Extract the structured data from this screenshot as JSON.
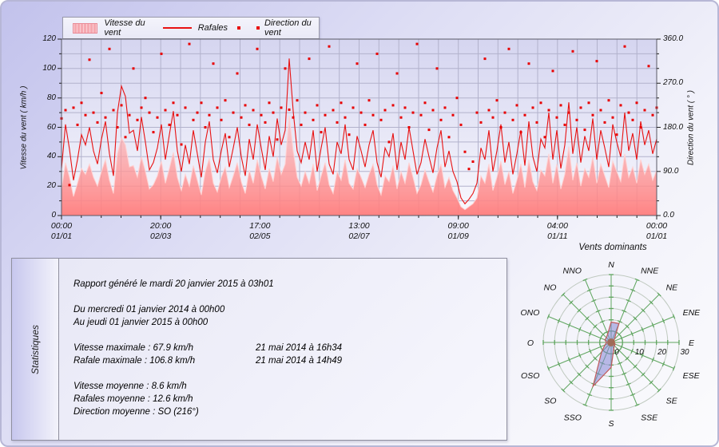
{
  "legend": {
    "items": [
      {
        "label": "Vitesse du vent",
        "sample": "area",
        "color": "#f5a8b0"
      },
      {
        "label": "Rafales",
        "sample": "line",
        "color": "#e81212"
      },
      {
        "label": "Direction du vent",
        "sample": "dots",
        "color": "#e80000"
      }
    ]
  },
  "chart_data": {
    "type": "mixed",
    "title": "",
    "ylabel_left": "Vitesse du vent ( km/h )",
    "ylabel_right": "Direction du vent ( ° )",
    "ylim_left": [
      0,
      120
    ],
    "ylim_right": [
      0,
      360
    ],
    "yticks_left": [
      0,
      20,
      40,
      60,
      80,
      100,
      120
    ],
    "yticks_right": [
      "0.0",
      "90.0",
      "180.0",
      "270.0",
      "360.0"
    ],
    "x_ticks": [
      {
        "time": "00:00",
        "date": "01/01"
      },
      {
        "time": "20:00",
        "date": "02/03"
      },
      {
        "time": "17:00",
        "date": "02/05"
      },
      {
        "time": "13:00",
        "date": "02/07"
      },
      {
        "time": "09:00",
        "date": "01/09"
      },
      {
        "time": "04:00",
        "date": "01/11"
      },
      {
        "time": "00:00",
        "date": "01/01"
      }
    ],
    "grid": {
      "x_divisions": 30,
      "y_divisions": 12
    },
    "colors": {
      "plot_bg_top": "#d5d5f0",
      "plot_bg_bottom": "#f8f8fd",
      "grid": "#b2b2cc",
      "frame": "#5a5a66",
      "area_fill_top": "#ffb4b4",
      "area_fill_bottom": "#ff7d7d",
      "area_edge": "#ffd2d2",
      "line": "#e81212",
      "dots": "#e80000"
    },
    "series": [
      {
        "name": "Vitesse du vent",
        "type": "area",
        "axis": "left",
        "values": [
          18,
          36,
          26,
          13,
          22,
          32,
          28,
          35,
          26,
          20,
          30,
          38,
          24,
          15,
          42,
          53,
          48,
          33,
          34,
          26,
          40,
          30,
          18,
          21,
          27,
          37,
          22,
          32,
          43,
          26,
          17,
          28,
          20,
          34,
          24,
          14,
          30,
          39,
          22,
          16,
          26,
          33,
          19,
          27,
          36,
          23,
          15,
          31,
          22,
          38,
          27,
          18,
          32,
          23,
          40,
          28,
          35,
          67.9,
          44,
          26,
          20,
          30,
          22,
          35,
          17,
          27,
          36,
          21,
          15,
          30,
          24,
          38,
          22,
          18,
          32,
          26,
          19,
          28,
          35,
          21,
          14,
          27,
          23,
          34,
          18,
          30,
          22,
          36,
          26,
          15,
          21,
          31,
          23,
          16,
          27,
          35,
          19,
          26,
          17,
          12,
          6,
          4,
          6,
          8,
          12,
          27,
          22,
          35,
          17,
          26,
          37,
          21,
          30,
          15,
          24,
          35,
          19,
          38,
          23,
          17,
          31,
          27,
          42,
          22,
          35,
          18,
          28,
          47,
          24,
          36,
          20,
          32,
          26,
          40,
          22,
          35,
          27,
          19,
          37,
          30,
          23,
          42,
          26,
          33,
          22,
          38,
          28,
          35,
          24,
          31
        ]
      },
      {
        "name": "Rafales",
        "type": "line",
        "axis": "left",
        "values": [
          32,
          62,
          45,
          24,
          38,
          55,
          48,
          60,
          44,
          35,
          52,
          64,
          42,
          27,
          70,
          88,
          81,
          56,
          58,
          44,
          67,
          50,
          31,
          36,
          46,
          62,
          38,
          55,
          71,
          44,
          30,
          48,
          35,
          58,
          42,
          26,
          50,
          64,
          38,
          29,
          44,
          56,
          33,
          46,
          60,
          40,
          27,
          52,
          38,
          62,
          46,
          31,
          54,
          40,
          66,
          48,
          58,
          106.8,
          71,
          44,
          36,
          50,
          38,
          58,
          30,
          46,
          60,
          35,
          28,
          50,
          42,
          62,
          38,
          31,
          54,
          44,
          33,
          48,
          58,
          36,
          26,
          46,
          40,
          56,
          31,
          50,
          38,
          60,
          44,
          28,
          36,
          52,
          40,
          29,
          46,
          58,
          33,
          44,
          30,
          23,
          12,
          8,
          11,
          15,
          22,
          46,
          38,
          58,
          30,
          44,
          62,
          36,
          50,
          28,
          42,
          58,
          34,
          64,
          40,
          30,
          52,
          46,
          70,
          38,
          58,
          32,
          48,
          77,
          42,
          60,
          36,
          54,
          44,
          66,
          38,
          58,
          46,
          33,
          62,
          50,
          40,
          70,
          44,
          56,
          38,
          64,
          48,
          58,
          42,
          52
        ]
      },
      {
        "name": "Direction du vent",
        "type": "scatter",
        "axis": "right",
        "values": [
          198,
          215,
          62,
          220,
          185,
          230,
          205,
          318,
          210,
          190,
          250,
          200,
          340,
          215,
          180,
          225,
          160,
          205,
          300,
          195,
          220,
          240,
          210,
          170,
          200,
          330,
          215,
          185,
          230,
          205,
          145,
          220,
          350,
          195,
          210,
          230,
          180,
          205,
          310,
          220,
          195,
          235,
          160,
          210,
          290,
          200,
          225,
          185,
          215,
          340,
          205,
          190,
          230,
          210,
          155,
          220,
          300,
          216,
          200,
          235,
          185,
          210,
          320,
          195,
          225,
          170,
          205,
          345,
          215,
          190,
          230,
          200,
          165,
          220,
          310,
          210,
          185,
          235,
          205,
          330,
          195,
          215,
          150,
          225,
          290,
          200,
          220,
          180,
          210,
          350,
          205,
          230,
          175,
          215,
          300,
          195,
          220,
          160,
          205,
          240,
          185,
          130,
          95,
          110,
          210,
          190,
          320,
          215,
          200,
          235,
          180,
          210,
          340,
          195,
          225,
          170,
          205,
          310,
          220,
          190,
          230,
          160,
          215,
          295,
          200,
          225,
          185,
          210,
          335,
          195,
          220,
          175,
          230,
          205,
          315,
          215,
          190,
          235,
          200,
          165,
          225,
          345,
          210,
          195,
          230,
          180,
          215,
          305,
          205,
          220
        ]
      }
    ]
  },
  "stats": {
    "panel_title": "Statistiques",
    "generated": "Rapport généré le mardi 20 janvier 2015 à 03h01",
    "period_from": "Du mercredi 01 janvier 2014 à 00h00",
    "period_to": "Au jeudi 01 janvier 2015 à 00h00",
    "vmax_label": "Vitesse maximale : 67.9 km/h",
    "vmax_date": "21 mai 2014 à 16h34",
    "rmax_label": "Rafale maximale : 106.8 km/h",
    "rmax_date": "21 mai 2014 à 14h49",
    "vmoy": "Vitesse moyenne : 8.6 km/h",
    "rmoy": "Rafales moyenne : 12.6 km/h",
    "dmoy": "Direction moyenne : SO (216°)"
  },
  "windrose": {
    "title": "Vents dominants",
    "directions": [
      "N",
      "NNE",
      "NE",
      "ENE",
      "E",
      "ESE",
      "SE",
      "SSE",
      "S",
      "SSO",
      "SO",
      "OSO",
      "O",
      "ONO",
      "NO",
      "NNO"
    ],
    "values": [
      9,
      9,
      2,
      1,
      1,
      2,
      2,
      3,
      11,
      21,
      6,
      3,
      2,
      3,
      3,
      4
    ],
    "max_radius": 30,
    "rings": [
      5,
      10,
      15,
      20,
      25,
      30
    ],
    "scale_labels": [
      0,
      10,
      20,
      30
    ],
    "colors": {
      "spoke": "#5fa55f",
      "ring": "#bfc9bf",
      "fill": "#8585d5",
      "outline": "#c25a5a",
      "center": "#a5654c"
    }
  }
}
